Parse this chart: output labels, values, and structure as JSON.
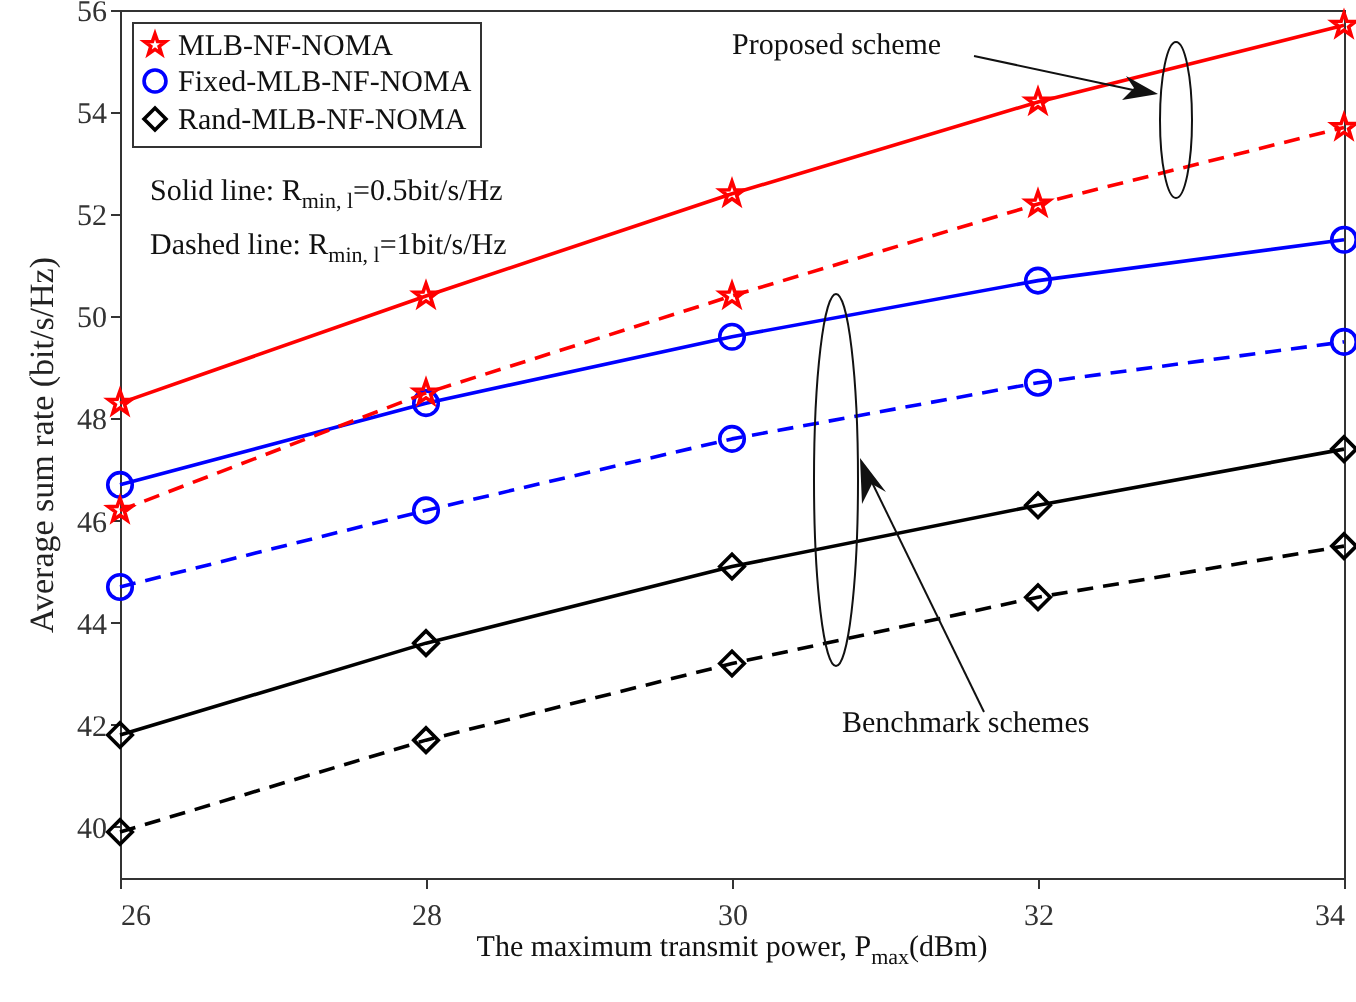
{
  "chart_data": {
    "type": "line",
    "xlabel": "The maximum transmit power, P$_{max}$(dBm)",
    "ylabel": "Average sum rate (bit/s/Hz)",
    "x": [
      26,
      28,
      30,
      32,
      34
    ],
    "xlim": [
      26,
      34
    ],
    "xticks": [
      26,
      28,
      30,
      32,
      34
    ],
    "ylim": [
      39,
      56
    ],
    "yticks": [
      40,
      42,
      44,
      46,
      48,
      50,
      52,
      54,
      56
    ],
    "grid": false,
    "legend": "top left",
    "series": [
      {
        "name": "MLB-NF-NOMA",
        "color": "#ff0000",
        "marker": "star",
        "line_style": "solid",
        "values": [
          48.3,
          50.4,
          52.4,
          54.2,
          55.7
        ]
      },
      {
        "name": "Fixed-MLB-NF-NOMA",
        "color": "#0000ff",
        "marker": "circle",
        "line_style": "solid",
        "values": [
          46.7,
          48.3,
          49.6,
          50.7,
          51.5
        ]
      },
      {
        "name": "Rand-MLB-NF-NOMA",
        "color": "#000000",
        "marker": "diamond",
        "line_style": "solid",
        "values": [
          41.8,
          43.6,
          45.1,
          46.3,
          47.4
        ]
      },
      {
        "color": "#ff0000",
        "marker": "star",
        "line_style": "dashed",
        "values": [
          46.2,
          48.5,
          50.4,
          52.2,
          53.7
        ]
      },
      {
        "color": "#0000ff",
        "marker": "circle",
        "line_style": "dashed",
        "values": [
          44.7,
          46.2,
          47.6,
          48.7,
          49.5
        ]
      },
      {
        "color": "#000000",
        "marker": "diamond",
        "line_style": "dashed",
        "values": [
          39.9,
          41.7,
          43.2,
          44.5,
          45.5
        ]
      }
    ],
    "annotations": [
      "Solid line:  R$_{min, l}$=0.5bit/s/Hz",
      "Dashed line:  R$_{min, l}$=1bit/s/Hz",
      "Proposed scheme",
      "Benchmark schemes"
    ]
  }
}
